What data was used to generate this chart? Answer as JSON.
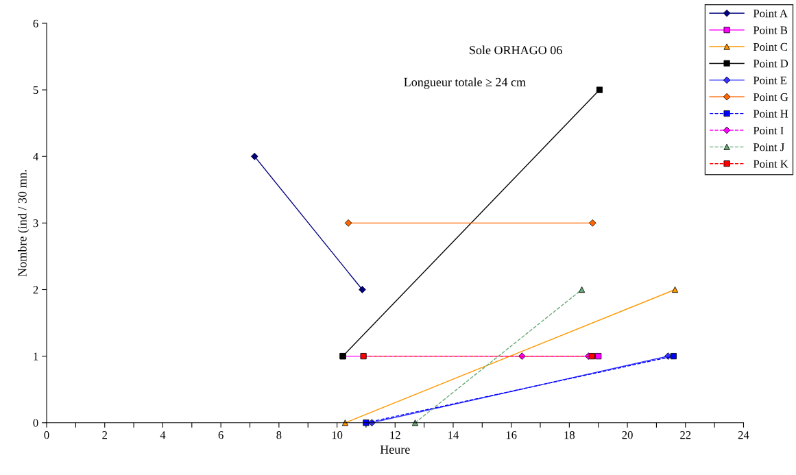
{
  "chart_data": {
    "type": "line",
    "title": "Sole ORHAGO 06",
    "subtitle": "Longueur totale ≥ 24 cm",
    "xlabel": "Heure",
    "ylabel": "Nombre (ind / 30 mn.",
    "xlim": [
      0,
      24
    ],
    "ylim": [
      0,
      6
    ],
    "xticks": [
      0,
      {
        "value": 1,
        "label": null
      },
      2,
      {
        "value": 3,
        "label": null
      },
      4,
      {
        "value": 5,
        "label": null
      },
      6,
      {
        "value": 7,
        "label": null
      },
      8,
      {
        "value": 9,
        "label": null
      },
      10,
      {
        "value": 11,
        "label": null
      },
      12,
      {
        "value": 13,
        "label": null
      },
      14,
      {
        "value": 15,
        "label": null
      },
      16,
      {
        "value": 17,
        "label": null
      },
      18,
      {
        "value": 19,
        "label": null
      },
      20,
      {
        "value": 21,
        "label": null
      },
      22,
      {
        "value": 23,
        "label": null
      },
      24
    ],
    "yticks": [
      0,
      1,
      2,
      3,
      4,
      5,
      6
    ],
    "grid": false,
    "legend": "top right",
    "series": [
      {
        "name": "Point A",
        "color": "#000080",
        "marker": "diamond",
        "line_style": "solid",
        "x": [
          7.16,
          10.87
        ],
        "values": [
          4,
          2
        ]
      },
      {
        "name": "Point B",
        "color": "#ff00ff",
        "marker": "square",
        "line_style": "solid",
        "x": [
          10.2,
          19.0
        ],
        "values": [
          1,
          1
        ]
      },
      {
        "name": "Point C",
        "color": "#ff9900",
        "marker": "triangle",
        "line_style": "solid",
        "x": [
          10.28,
          21.64
        ],
        "values": [
          0,
          2
        ]
      },
      {
        "name": "Point D",
        "color": "#000000",
        "marker": "square",
        "line_style": "solid",
        "x": [
          10.2,
          19.04
        ],
        "values": [
          1,
          5
        ]
      },
      {
        "name": "Point E",
        "color": "#3333ff",
        "marker": "diamond",
        "line_style": "solid",
        "x": [
          11.2,
          21.4
        ],
        "values": [
          0,
          1
        ]
      },
      {
        "name": "Point G",
        "color": "#ff6600",
        "marker": "diamond",
        "line_style": "solid",
        "x": [
          10.39,
          18.8
        ],
        "values": [
          3,
          3
        ]
      },
      {
        "name": "Point H",
        "color": "#0000ff",
        "marker": "square",
        "line_style": "dashed",
        "x": [
          11.0,
          21.59
        ],
        "values": [
          0,
          1
        ]
      },
      {
        "name": "Point I",
        "color": "#ff00ff",
        "marker": "diamond",
        "line_style": "dashed",
        "x": [
          16.37,
          18.66
        ],
        "values": [
          1,
          1
        ]
      },
      {
        "name": "Point J",
        "color": "#66aa77",
        "marker": "triangle",
        "line_style": "dashed",
        "x": [
          12.69,
          18.43
        ],
        "values": [
          0,
          2
        ]
      },
      {
        "name": "Point K",
        "color": "#ff0000",
        "marker": "square",
        "line_style": "dashed",
        "x": [
          10.91,
          18.78
        ],
        "values": [
          1,
          1
        ]
      }
    ]
  }
}
